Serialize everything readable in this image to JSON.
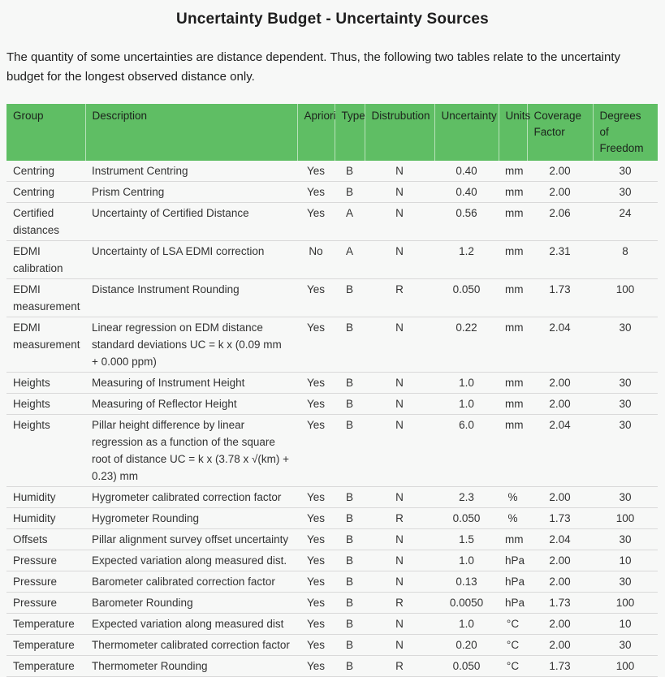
{
  "page": {
    "title": "Uncertainty Budget - Uncertainty Sources",
    "intro": "The quantity of some uncertainties are distance dependent. Thus, the following two tables relate to the uncertainty budget for the longest observed distance only."
  },
  "colors": {
    "page_bg": "#f7f8f7",
    "header_bg": "#5fbe64",
    "header_text": "#1c231c",
    "title_text": "#1d1d1d",
    "body_text": "#333333",
    "row_border": "#d9d9d9"
  },
  "table": {
    "columns": [
      {
        "key": "group",
        "label": "Group",
        "align": "left",
        "wrap": false
      },
      {
        "key": "description",
        "label": "Description",
        "align": "left",
        "wrap": false
      },
      {
        "key": "apriori",
        "label": "Apriori",
        "align": "center",
        "wrap": false
      },
      {
        "key": "type",
        "label": "Type",
        "align": "center",
        "wrap": false
      },
      {
        "key": "distrubution",
        "label": "Distrubution",
        "align": "center",
        "wrap": false
      },
      {
        "key": "uncertainty",
        "label": "Uncertainty",
        "align": "center",
        "wrap": false
      },
      {
        "key": "units",
        "label": "Units",
        "align": "center",
        "wrap": false
      },
      {
        "key": "coverage",
        "label": "Coverage Factor",
        "align": "center",
        "wrap": true
      },
      {
        "key": "degrees",
        "label": "Degrees of Freedom",
        "align": "center",
        "wrap": true
      }
    ],
    "rows": [
      [
        "Centring",
        "Instrument Centring",
        "Yes",
        "B",
        "N",
        "0.40",
        "mm",
        "2.00",
        "30"
      ],
      [
        "Centring",
        "Prism Centring",
        "Yes",
        "B",
        "N",
        "0.40",
        "mm",
        "2.00",
        "30"
      ],
      [
        "Certified distances",
        "Uncertainty of Certified Distance",
        "Yes",
        "A",
        "N",
        "0.56",
        "mm",
        "2.06",
        "24"
      ],
      [
        "EDMI calibration",
        "Uncertainty of LSA EDMI correction",
        "No",
        "A",
        "N",
        "1.2",
        "mm",
        "2.31",
        "8"
      ],
      [
        "EDMI measurement",
        "Distance Instrument Rounding",
        "Yes",
        "B",
        "R",
        "0.050",
        "mm",
        "1.73",
        "100"
      ],
      [
        "EDMI measurement",
        "Linear regression on EDM distance standard deviations UC = k x (0.09 mm + 0.000 ppm)",
        "Yes",
        "B",
        "N",
        "0.22",
        "mm",
        "2.04",
        "30"
      ],
      [
        "Heights",
        "Measuring of Instrument Height",
        "Yes",
        "B",
        "N",
        "1.0",
        "mm",
        "2.00",
        "30"
      ],
      [
        "Heights",
        "Measuring of Reflector Height",
        "Yes",
        "B",
        "N",
        "1.0",
        "mm",
        "2.00",
        "30"
      ],
      [
        "Heights",
        "Pillar height difference by linear regression as a function of the square root of distance UC = k x (3.78 x √(km) + 0.23) mm",
        "Yes",
        "B",
        "N",
        "6.0",
        "mm",
        "2.04",
        "30"
      ],
      [
        "Humidity",
        "Hygrometer calibrated correction factor",
        "Yes",
        "B",
        "N",
        "2.3",
        "%",
        "2.00",
        "30"
      ],
      [
        "Humidity",
        "Hygrometer Rounding",
        "Yes",
        "B",
        "R",
        "0.050",
        "%",
        "1.73",
        "100"
      ],
      [
        "Offsets",
        "Pillar alignment survey offset uncertainty",
        "Yes",
        "B",
        "N",
        "1.5",
        "mm",
        "2.04",
        "30"
      ],
      [
        "Pressure",
        "Expected variation along measured dist.",
        "Yes",
        "B",
        "N",
        "1.0",
        "hPa",
        "2.00",
        "10"
      ],
      [
        "Pressure",
        "Barometer calibrated correction factor",
        "Yes",
        "B",
        "N",
        "0.13",
        "hPa",
        "2.00",
        "30"
      ],
      [
        "Pressure",
        "Barometer Rounding",
        "Yes",
        "B",
        "R",
        "0.0050",
        "hPa",
        "1.73",
        "100"
      ],
      [
        "Temperature",
        "Expected variation along measured dist",
        "Yes",
        "B",
        "N",
        "1.0",
        "°C",
        "2.00",
        "10"
      ],
      [
        "Temperature",
        "Thermometer calibrated correction factor",
        "Yes",
        "B",
        "N",
        "0.20",
        "°C",
        "2.00",
        "30"
      ],
      [
        "Temperature",
        "Thermometer Rounding",
        "Yes",
        "B",
        "R",
        "0.050",
        "°C",
        "1.73",
        "100"
      ]
    ]
  }
}
